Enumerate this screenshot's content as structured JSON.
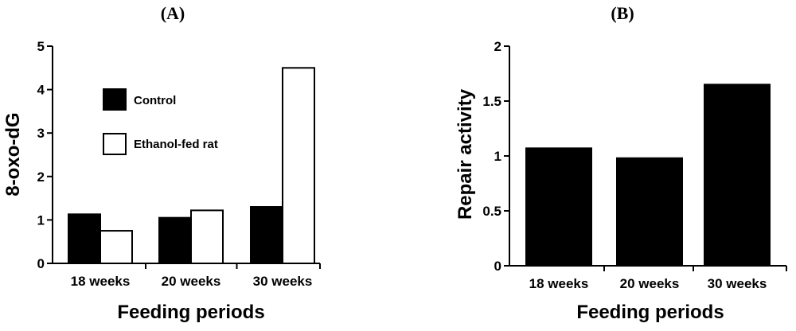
{
  "chart_data": [
    {
      "type": "bar",
      "panel_label": "(A)",
      "categories": [
        "18 weeks",
        "20 weeks",
        "30 weeks"
      ],
      "series": [
        {
          "name": "Control",
          "values": [
            1.13,
            1.05,
            1.3
          ],
          "color": "#000000"
        },
        {
          "name": "Ethanol-fed rat",
          "values": [
            0.75,
            1.22,
            4.5
          ],
          "color": "#ffffff"
        }
      ],
      "xlabel": "Feeding periods",
      "ylabel": "8-oxo-dG",
      "ylim": [
        0,
        5
      ],
      "yticks": [
        0,
        1,
        2,
        3,
        4,
        5
      ],
      "ytick_labels": [
        "0",
        "1",
        "2",
        "3",
        "4",
        "5"
      ],
      "legend_position": "upper-left"
    },
    {
      "type": "bar",
      "panel_label": "(B)",
      "categories": [
        "18 weeks",
        "20 weeks",
        "30 weeks"
      ],
      "series": [
        {
          "name": "Repair activity",
          "values": [
            1.07,
            0.98,
            1.65
          ],
          "color": "#000000"
        }
      ],
      "xlabel": "Feeding periods",
      "ylabel": "Repair activity",
      "ylim": [
        0,
        2
      ],
      "yticks": [
        0,
        0.5,
        1,
        1.5,
        2
      ],
      "ytick_labels": [
        "0",
        "0.5",
        "1",
        "1.5",
        "2"
      ]
    }
  ]
}
